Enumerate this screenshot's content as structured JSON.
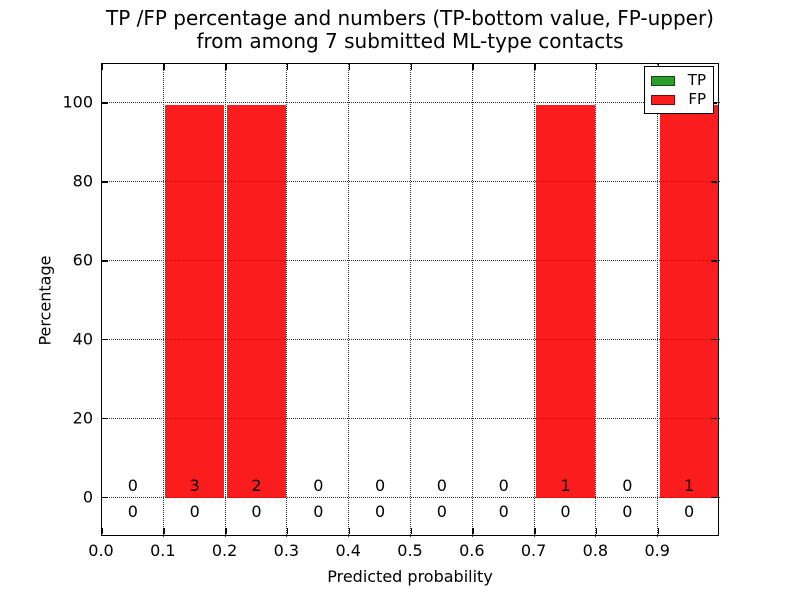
{
  "figure": {
    "title_line1": "TP /FP percentage and numbers (TP-bottom value, FP-upper)",
    "title_line2": "from among 7 submitted ML-type contacts"
  },
  "axes": {
    "xlabel": "Predicted probability",
    "ylabel": "Percentage",
    "x_tick_values": [
      0.0,
      0.1,
      0.2,
      0.3,
      0.4,
      0.5,
      0.6,
      0.7,
      0.8,
      0.9
    ],
    "x_tick_labels": [
      "0.0",
      "0.1",
      "0.2",
      "0.3",
      "0.4",
      "0.5",
      "0.6",
      "0.7",
      "0.8",
      "0.9"
    ],
    "y_tick_values": [
      0,
      20,
      40,
      60,
      80,
      100
    ],
    "y_tick_labels": [
      "0",
      "20",
      "40",
      "60",
      "80",
      "100"
    ],
    "xlim": [
      0.0,
      1.0
    ],
    "ylim": [
      -10,
      110
    ],
    "grid_style": "dotted"
  },
  "legend": {
    "position": "upper right",
    "entries": [
      {
        "label": "TP",
        "color": "#2a9d2a"
      },
      {
        "label": "FP",
        "color": "#fb1d1d"
      }
    ]
  },
  "chart_data": {
    "type": "bar",
    "stacked": true,
    "title": "TP /FP percentage and numbers (TP-bottom value, FP-upper)\nfrom among 7 submitted ML-type contacts",
    "xlabel": "Predicted probability",
    "ylabel": "Percentage",
    "xlim": [
      0.0,
      1.0
    ],
    "ylim": [
      -10,
      110
    ],
    "grid": true,
    "legend_position": "upper right",
    "total_contacts": 7,
    "bin_edges": [
      0.0,
      0.1,
      0.2,
      0.3,
      0.4,
      0.5,
      0.6,
      0.7,
      0.8,
      0.9,
      1.0
    ],
    "categories": [
      "0.0-0.1",
      "0.1-0.2",
      "0.2-0.3",
      "0.3-0.4",
      "0.4-0.5",
      "0.5-0.6",
      "0.6-0.7",
      "0.7-0.8",
      "0.8-0.9",
      "0.9-1.0"
    ],
    "series": [
      {
        "name": "TP",
        "color": "#2a9d2a",
        "percent": [
          0,
          0,
          0,
          0,
          0,
          0,
          0,
          0,
          0,
          0
        ],
        "counts": [
          0,
          0,
          0,
          0,
          0,
          0,
          0,
          0,
          0,
          0
        ],
        "count_row": "lower"
      },
      {
        "name": "FP",
        "color": "#fb1d1d",
        "percent": [
          0,
          100,
          100,
          0,
          0,
          0,
          0,
          100,
          0,
          100
        ],
        "counts": [
          0,
          3,
          2,
          0,
          0,
          0,
          0,
          1,
          0,
          1
        ],
        "count_row": "upper"
      }
    ]
  }
}
